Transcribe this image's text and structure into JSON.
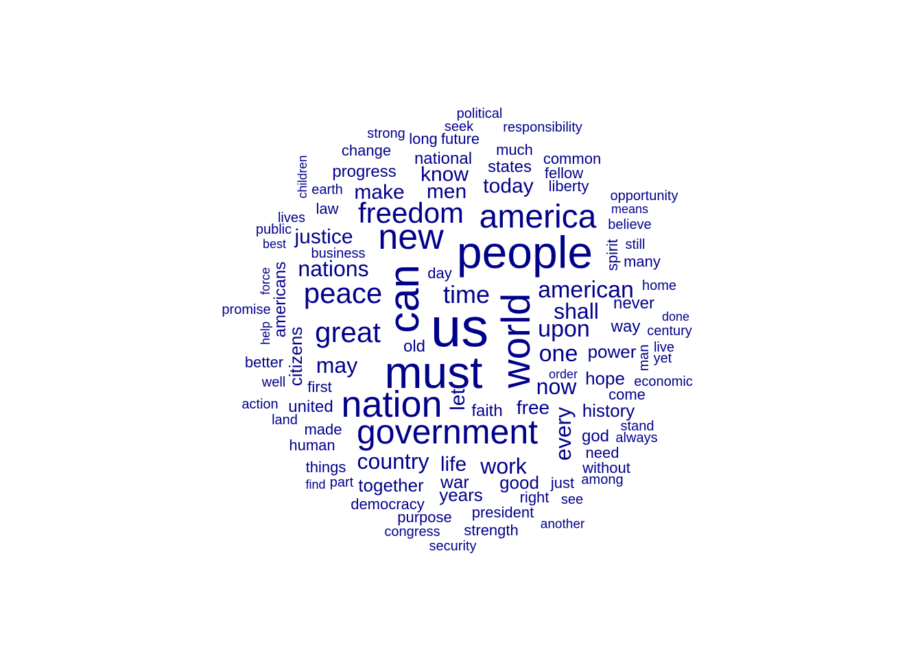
{
  "color": "#00008B",
  "words": [
    {
      "text": "us",
      "size": 80
    },
    {
      "text": "people",
      "size": 66
    },
    {
      "text": "must",
      "size": 66
    },
    {
      "text": "can",
      "size": 62,
      "vertical": true
    },
    {
      "text": "world",
      "size": 58,
      "vertical": true
    },
    {
      "text": "nation",
      "size": 54
    },
    {
      "text": "government",
      "size": 50
    },
    {
      "text": "new",
      "size": 52
    },
    {
      "text": "america",
      "size": 48
    },
    {
      "text": "freedom",
      "size": 42
    },
    {
      "text": "peace",
      "size": 42
    },
    {
      "text": "great",
      "size": 42
    },
    {
      "text": "time",
      "size": 36
    },
    {
      "text": "american",
      "size": 34
    },
    {
      "text": "one",
      "size": 34
    },
    {
      "text": "upon",
      "size": 34
    },
    {
      "text": "shall",
      "size": 32
    },
    {
      "text": "nations",
      "size": 32
    },
    {
      "text": "may",
      "size": 32
    },
    {
      "text": "now",
      "size": 32
    },
    {
      "text": "country",
      "size": 32
    },
    {
      "text": "work",
      "size": 32
    },
    {
      "text": "every",
      "size": 32,
      "vertical": true
    },
    {
      "text": "know",
      "size": 30
    },
    {
      "text": "make",
      "size": 30
    },
    {
      "text": "men",
      "size": 30
    },
    {
      "text": "today",
      "size": 30
    },
    {
      "text": "justice",
      "size": 30
    },
    {
      "text": "life",
      "size": 30
    },
    {
      "text": "let",
      "size": 30,
      "vertical": true
    },
    {
      "text": "free",
      "size": 28
    },
    {
      "text": "hope",
      "size": 26
    },
    {
      "text": "power",
      "size": 26
    },
    {
      "text": "together",
      "size": 26
    },
    {
      "text": "war",
      "size": 26
    },
    {
      "text": "years",
      "size": 26
    },
    {
      "text": "good",
      "size": 26
    },
    {
      "text": "history",
      "size": 26
    },
    {
      "text": "citizens",
      "size": 26,
      "vertical": true
    },
    {
      "text": "americans",
      "size": 24,
      "vertical": true
    },
    {
      "text": "national",
      "size": 24
    },
    {
      "text": "states",
      "size": 24
    },
    {
      "text": "progress",
      "size": 24
    },
    {
      "text": "never",
      "size": 24
    },
    {
      "text": "united",
      "size": 24
    },
    {
      "text": "old",
      "size": 24
    },
    {
      "text": "faith",
      "size": 24
    },
    {
      "text": "god",
      "size": 24
    },
    {
      "text": "way",
      "size": 24
    },
    {
      "text": "day",
      "size": 22
    },
    {
      "text": "law",
      "size": 22
    },
    {
      "text": "liberty",
      "size": 22
    },
    {
      "text": "change",
      "size": 22
    },
    {
      "text": "common",
      "size": 22
    },
    {
      "text": "fellow",
      "size": 22
    },
    {
      "text": "much",
      "size": 22
    },
    {
      "text": "made",
      "size": 22
    },
    {
      "text": "human",
      "size": 22
    },
    {
      "text": "democracy",
      "size": 22
    },
    {
      "text": "president",
      "size": 22
    },
    {
      "text": "purpose",
      "size": 22
    },
    {
      "text": "things",
      "size": 22
    },
    {
      "text": "come",
      "size": 22
    },
    {
      "text": "need",
      "size": 22
    },
    {
      "text": "many",
      "size": 22
    },
    {
      "text": "believe",
      "size": 20
    },
    {
      "text": "just",
      "size": 22
    },
    {
      "text": "right",
      "size": 22
    },
    {
      "text": "strength",
      "size": 22
    },
    {
      "text": "without",
      "size": 22
    },
    {
      "text": "spirit",
      "size": 22,
      "vertical": true
    },
    {
      "text": "long",
      "size": 22
    },
    {
      "text": "future",
      "size": 22
    },
    {
      "text": "better",
      "size": 22
    },
    {
      "text": "first",
      "size": 22
    },
    {
      "text": "man",
      "size": 20,
      "vertical": true
    },
    {
      "text": "responsibility",
      "size": 20
    },
    {
      "text": "political",
      "size": 20
    },
    {
      "text": "seek",
      "size": 20
    },
    {
      "text": "strong",
      "size": 20
    },
    {
      "text": "opportunity",
      "size": 20
    },
    {
      "text": "lives",
      "size": 20
    },
    {
      "text": "earth",
      "size": 20
    },
    {
      "text": "economic",
      "size": 20
    },
    {
      "text": "century",
      "size": 20
    },
    {
      "text": "well",
      "size": 20
    },
    {
      "text": "live",
      "size": 20
    },
    {
      "text": "among",
      "size": 20
    },
    {
      "text": "part",
      "size": 20
    },
    {
      "text": "yet",
      "size": 20
    },
    {
      "text": "stand",
      "size": 20
    },
    {
      "text": "always",
      "size": 20
    },
    {
      "text": "home",
      "size": 20
    },
    {
      "text": "business",
      "size": 20
    },
    {
      "text": "public",
      "size": 20
    },
    {
      "text": "promise",
      "size": 20
    },
    {
      "text": "action",
      "size": 20
    },
    {
      "text": "congress",
      "size": 20
    },
    {
      "text": "security",
      "size": 20
    },
    {
      "text": "still",
      "size": 20
    },
    {
      "text": "order",
      "size": 18
    },
    {
      "text": "land",
      "size": 20
    },
    {
      "text": "another",
      "size": 19
    },
    {
      "text": "see",
      "size": 20
    },
    {
      "text": "find",
      "size": 18
    },
    {
      "text": "best",
      "size": 18
    },
    {
      "text": "means",
      "size": 18
    },
    {
      "text": "done",
      "size": 18
    },
    {
      "text": "children",
      "size": 18,
      "vertical": true
    },
    {
      "text": "force",
      "size": 18,
      "vertical": true
    },
    {
      "text": "help",
      "size": 18,
      "vertical": true
    }
  ]
}
